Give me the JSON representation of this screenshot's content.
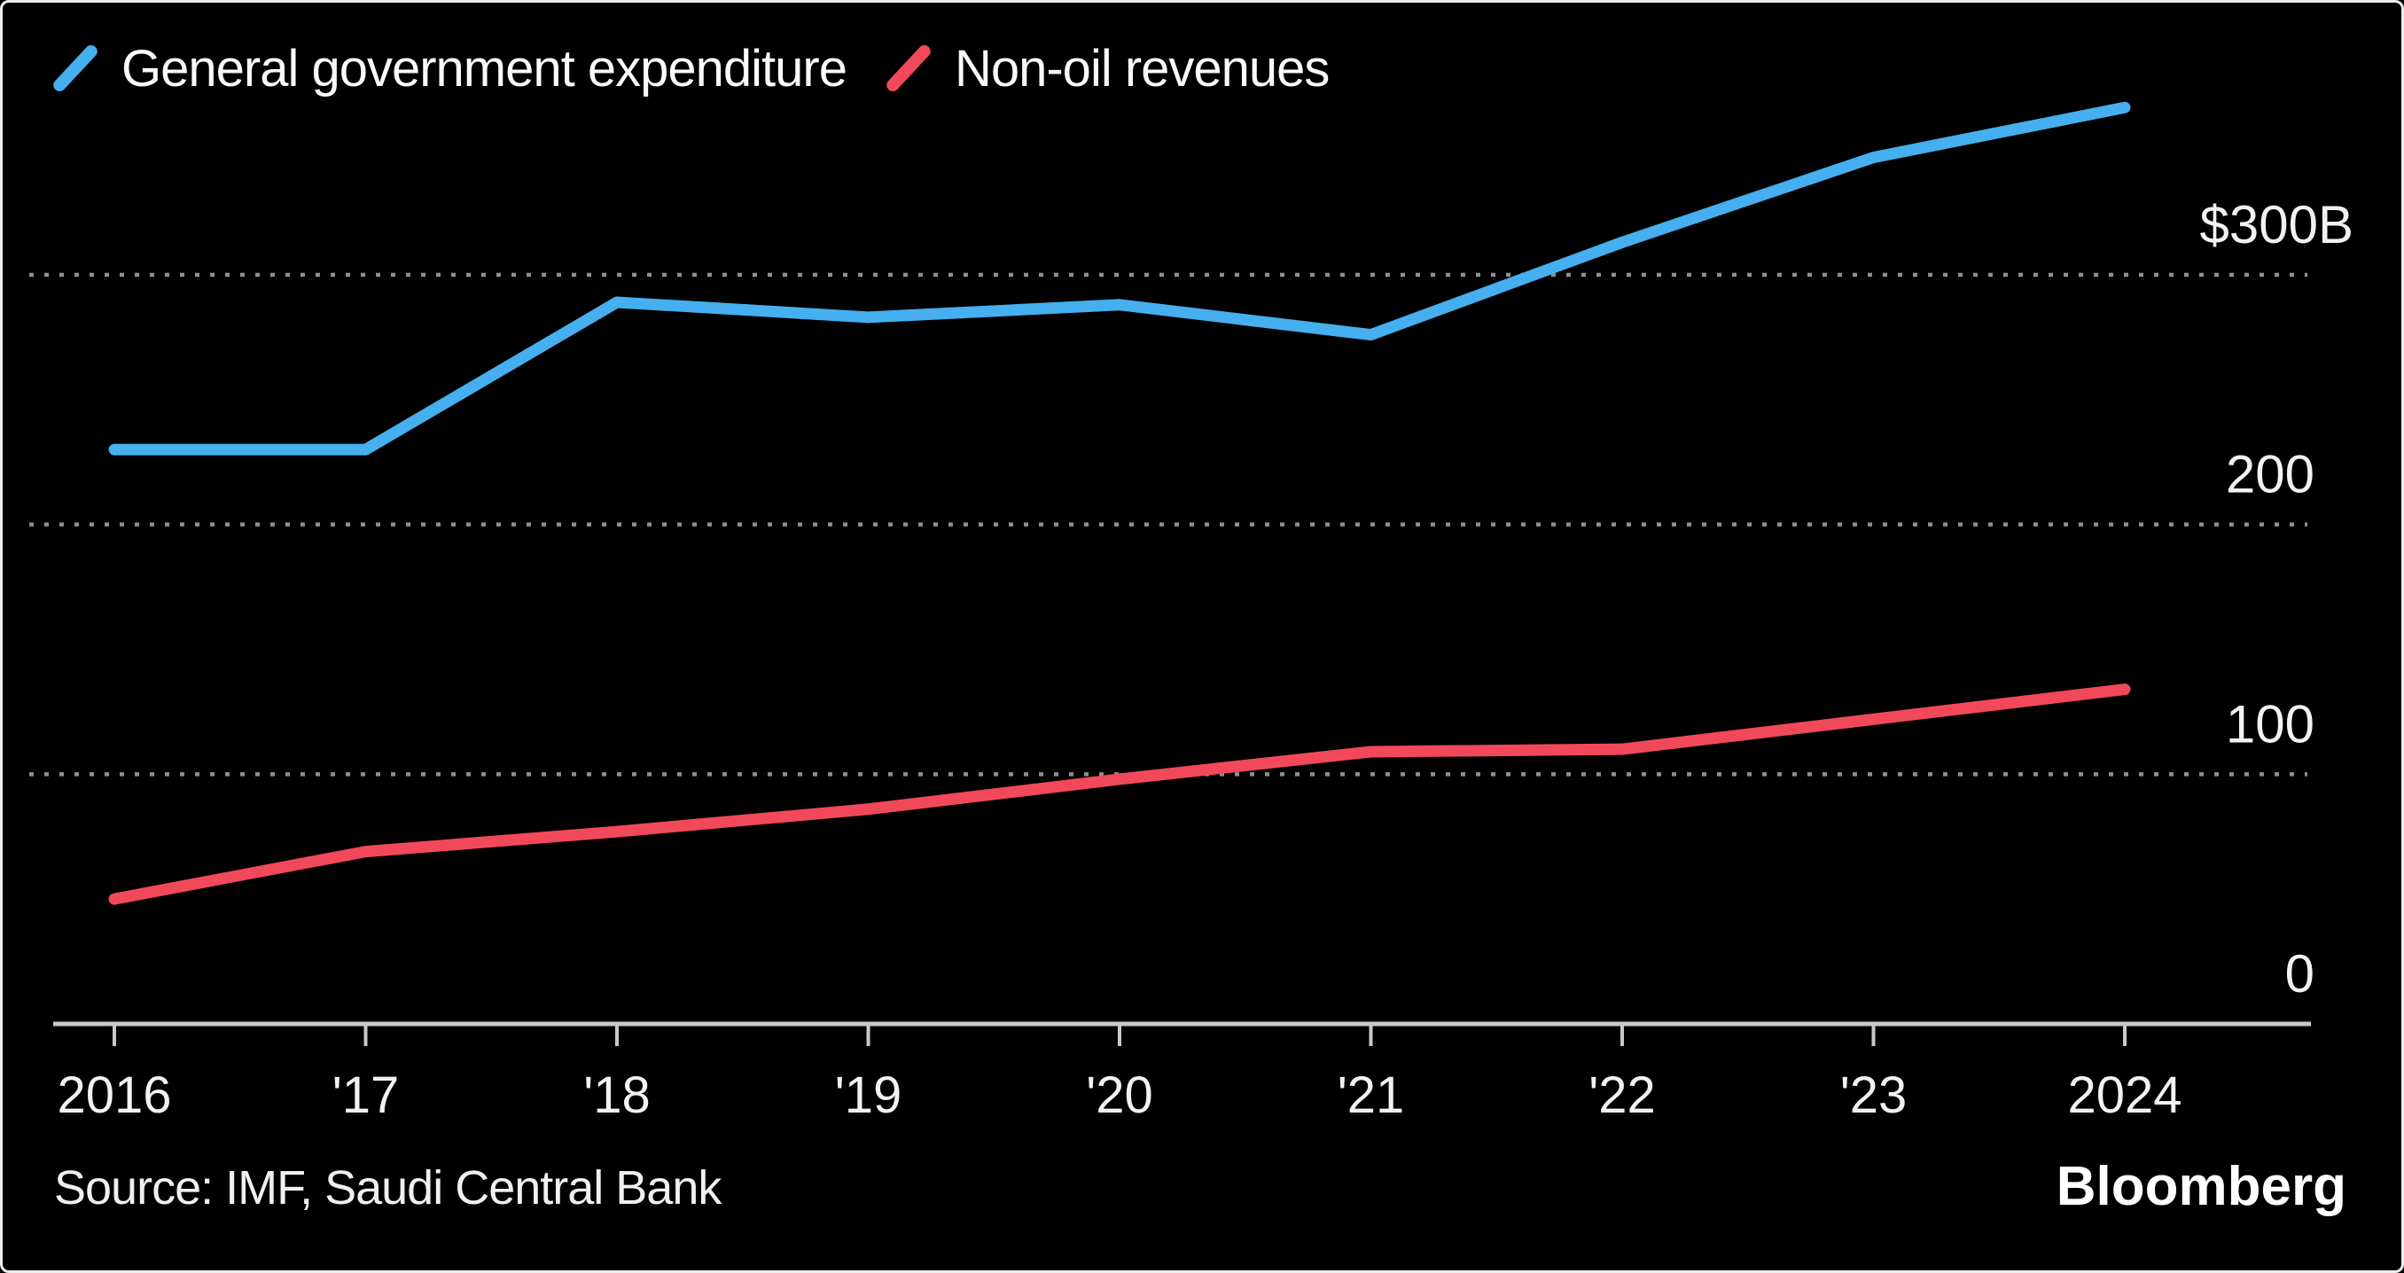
{
  "legend": {
    "items": [
      {
        "label": "General government expenditure",
        "color": "#45AFEF"
      },
      {
        "label": "Non-oil revenues",
        "color": "#F2495A"
      }
    ]
  },
  "chart_data": {
    "type": "line",
    "title": "",
    "categories": [
      2016,
      2017,
      2018,
      2019,
      2020,
      2021,
      2022,
      2023,
      2024
    ],
    "x_tick_labels": [
      "2016",
      "'17",
      "'18",
      "'19",
      "'20",
      "'21",
      "'22",
      "'23",
      "2024"
    ],
    "series": [
      {
        "name": "General government expenditure",
        "color": "#45AFEF",
        "values": [
          230,
          230,
          289,
          283,
          288,
          276,
          313,
          347,
          367
        ]
      },
      {
        "name": "Non-oil revenues",
        "color": "#F2495A",
        "values": [
          50,
          69,
          77,
          86,
          98,
          109,
          110,
          122,
          134
        ]
      }
    ],
    "y_axis": {
      "tick_labels": [
        {
          "text": "$300B",
          "value": 300
        },
        {
          "text": "200",
          "value": 200
        },
        {
          "text": "100",
          "value": 100
        },
        {
          "text": "0",
          "value": 0
        }
      ],
      "gridline_values": [
        300,
        200,
        100
      ],
      "ylim": [
        0,
        385
      ],
      "side": "right",
      "grid_style": "dotted"
    },
    "xlabel": "",
    "ylabel": "",
    "legend_position": "top-left",
    "units": "$B"
  },
  "footer": {
    "source": "Source: IMF, Saudi Central Bank",
    "brand": "Bloomberg"
  },
  "colors": {
    "background": "#000000",
    "axis": "#c9c9c9",
    "tick": "#c9c9c9",
    "gridline": "#8f8f8f",
    "label": "#f2f2f2"
  }
}
